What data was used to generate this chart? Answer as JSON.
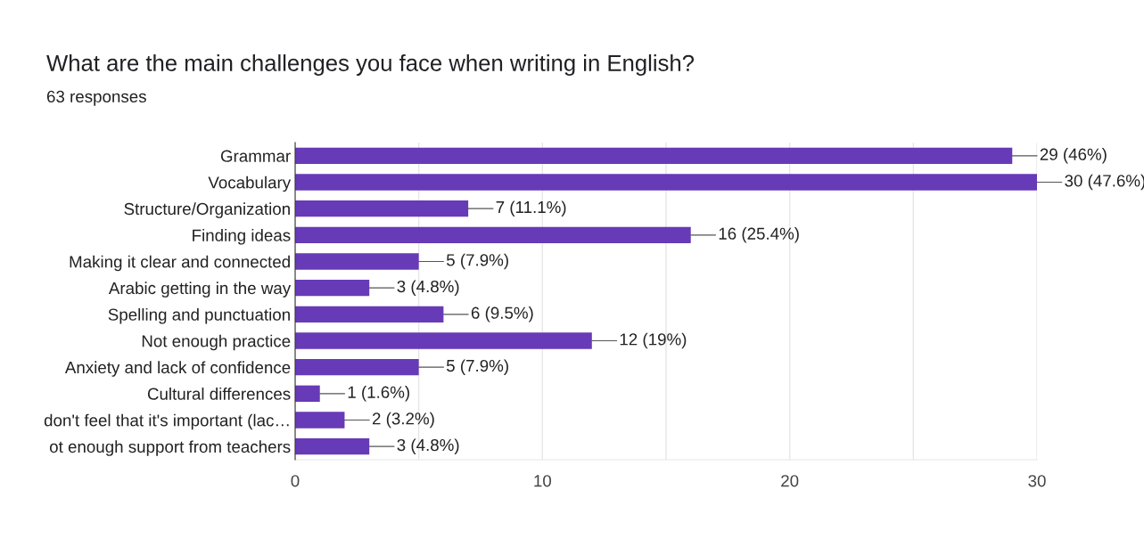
{
  "chart_data": {
    "type": "bar",
    "orientation": "horizontal",
    "title": "What are the main challenges you face when writing in English?",
    "subtitle": "63 responses",
    "categories": [
      "Grammar",
      "Vocabulary",
      "Structure/Organization",
      "Finding ideas",
      "Making it clear and connected",
      "Arabic getting in the way",
      "Spelling and punctuation",
      "Not enough practice",
      "Anxiety and lack of confidence",
      "Cultural differences",
      "don't feel that it's important (lac…",
      "ot enough support from teachers"
    ],
    "values": [
      29,
      30,
      7,
      16,
      5,
      3,
      6,
      12,
      5,
      1,
      2,
      3
    ],
    "value_labels": [
      "29 (46%)",
      "30 (47.6%)",
      "7 (11.1%)",
      "16 (25.4%)",
      "5 (7.9%)",
      "3 (4.8%)",
      "6 (9.5%)",
      "12 (19%)",
      "5 (7.9%)",
      "1 (1.6%)",
      "2 (3.2%)",
      "3 (4.8%)"
    ],
    "color": "#673ab7",
    "xlim": [
      0,
      30
    ],
    "xticks": [
      0,
      {
        "value": 5,
        "label": null
      },
      10,
      {
        "value": 15,
        "label": null
      },
      20,
      {
        "value": 25,
        "label": null
      },
      30
    ],
    "grid": "x"
  }
}
